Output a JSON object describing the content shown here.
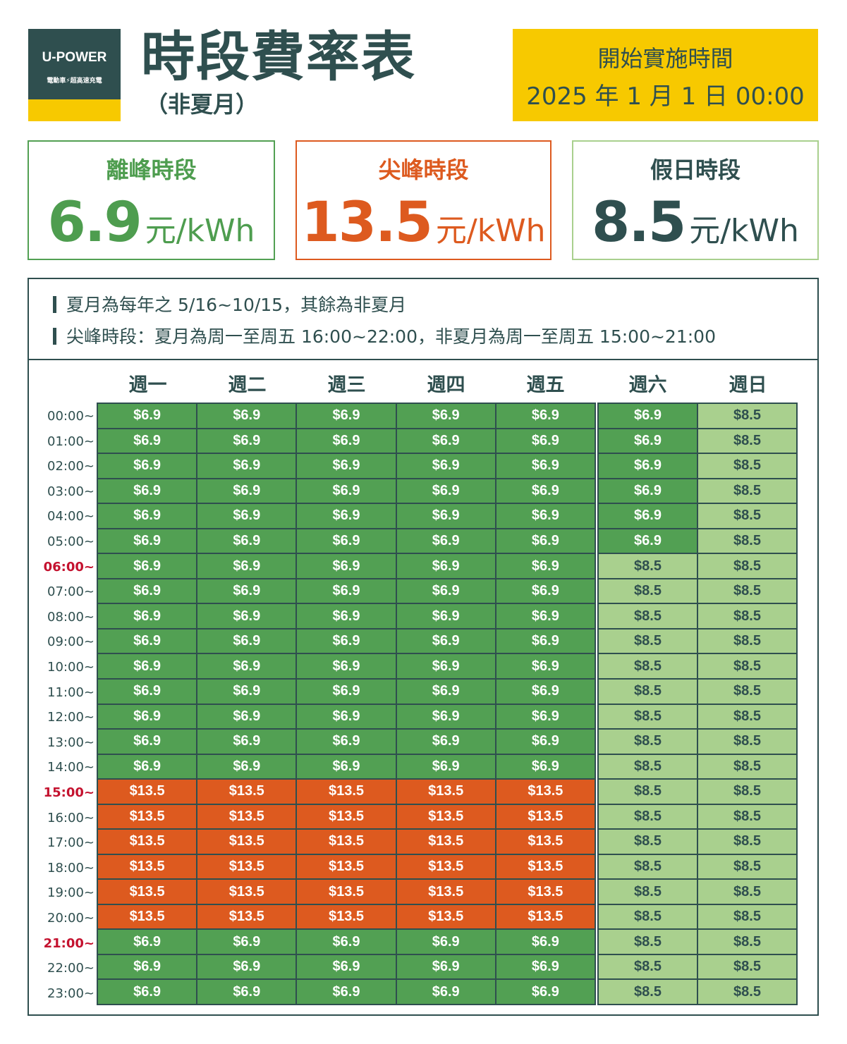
{
  "logo": {
    "brand": "U-POWER",
    "slogan": "電動車⚡超高速充電"
  },
  "header": {
    "title": "時段費率表",
    "subtitle": "（非夏月）"
  },
  "start": {
    "label": "開始實施時間",
    "date": "2025 年 1 月 1 日 00:00"
  },
  "rates": {
    "off_peak": {
      "label": "離峰時段",
      "value": "6.9",
      "unit": "元/kWh"
    },
    "peak": {
      "label": "尖峰時段",
      "value": "13.5",
      "unit": "元/kWh"
    },
    "holiday": {
      "label": "假日時段",
      "value": "8.5",
      "unit": "元/kWh"
    }
  },
  "notes": [
    "夏月為每年之 5/16~10/15，其餘為非夏月",
    "尖峰時段：夏月為周一至周五 16:00~22:00，非夏月為周一至周五 15:00~21:00"
  ],
  "days": [
    "週一",
    "週二",
    "週三",
    "週四",
    "週五",
    "週六",
    "週日"
  ],
  "times": [
    "00:00~",
    "01:00~",
    "02:00~",
    "03:00~",
    "04:00~",
    "05:00~",
    "06:00~",
    "07:00~",
    "08:00~",
    "09:00~",
    "10:00~",
    "11:00~",
    "12:00~",
    "13:00~",
    "14:00~",
    "15:00~",
    "16:00~",
    "17:00~",
    "18:00~",
    "19:00~",
    "20:00~",
    "21:00~",
    "22:00~",
    "23:00~"
  ],
  "highlighted_times": [
    "06:00~",
    "15:00~",
    "21:00~"
  ],
  "price_labels": {
    "off": "$6.9",
    "peak": "$13.5",
    "hol": "$8.5"
  },
  "schedule": {
    "weekday": [
      "off",
      "off",
      "off",
      "off",
      "off",
      "off",
      "off",
      "off",
      "off",
      "off",
      "off",
      "off",
      "off",
      "off",
      "off",
      "peak",
      "peak",
      "peak",
      "peak",
      "peak",
      "peak",
      "off",
      "off",
      "off"
    ],
    "saturday": [
      "off",
      "off",
      "off",
      "off",
      "off",
      "off",
      "hol",
      "hol",
      "hol",
      "hol",
      "hol",
      "hol",
      "hol",
      "hol",
      "hol",
      "hol",
      "hol",
      "hol",
      "hol",
      "hol",
      "hol",
      "hol",
      "hol",
      "hol"
    ],
    "sunday": [
      "hol",
      "hol",
      "hol",
      "hol",
      "hol",
      "hol",
      "hol",
      "hol",
      "hol",
      "hol",
      "hol",
      "hol",
      "hol",
      "hol",
      "hol",
      "hol",
      "hol",
      "hol",
      "hol",
      "hol",
      "hol",
      "hol",
      "hol",
      "hol"
    ]
  },
  "colors": {
    "dark": "#2f4f4f",
    "off": "#52a053",
    "peak": "#dd5a1f",
    "hol": "#a9d08e",
    "yellow": "#f7c900",
    "highlight": "#c4122f"
  }
}
